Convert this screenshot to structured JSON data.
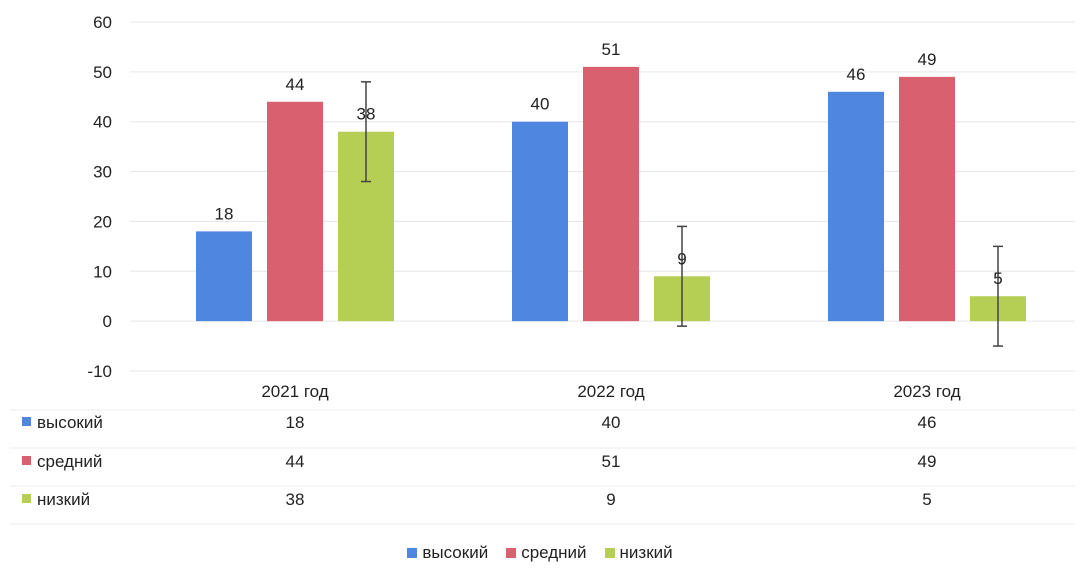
{
  "chart_data": {
    "type": "bar",
    "categories": [
      "2021 год",
      "2022 год",
      "2023 год"
    ],
    "series": [
      {
        "name": "высокий",
        "values": [
          18,
          40,
          46
        ],
        "color": "#4e86e0"
      },
      {
        "name": "средний",
        "values": [
          44,
          51,
          49
        ],
        "color": "#d8606f"
      },
      {
        "name": "низкий",
        "values": [
          38,
          9,
          5
        ],
        "color": "#b5cf55"
      }
    ],
    "error_bars": {
      "series": "низкий",
      "plus_minus": 10
    },
    "ylim": [
      -10,
      60
    ],
    "yticks": [
      -10,
      0,
      10,
      20,
      30,
      40,
      50,
      60
    ],
    "ytick_labels": [
      "-10",
      "0",
      "10",
      "20",
      "30",
      "40",
      "50",
      "60"
    ],
    "grid": true,
    "data_table": true,
    "legend_position": "bottom"
  }
}
